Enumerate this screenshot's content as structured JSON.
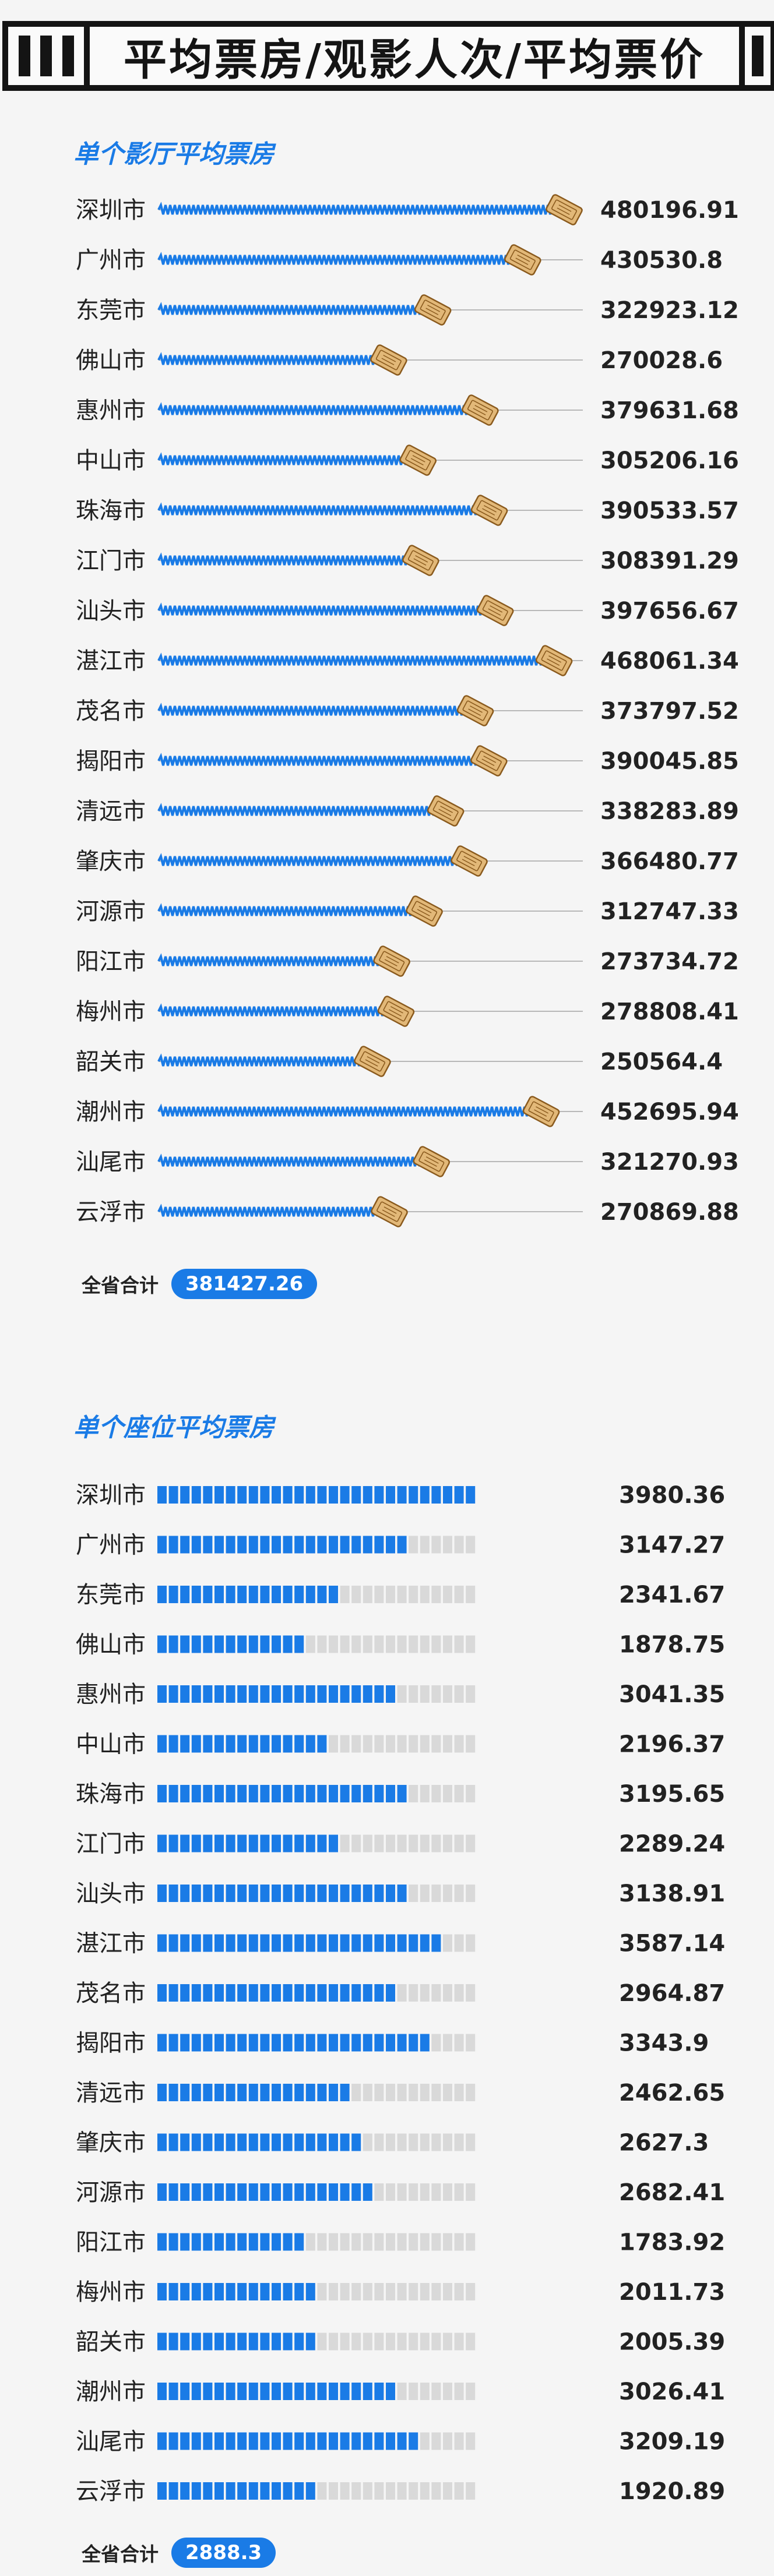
{
  "header": {
    "title": "平均票房/观影人次/平均票价"
  },
  "chart_data": [
    {
      "type": "bar",
      "title": "单个影厅平均票房",
      "categories": [
        "深圳市",
        "广州市",
        "东莞市",
        "佛山市",
        "惠州市",
        "中山市",
        "珠海市",
        "江门市",
        "汕头市",
        "湛江市",
        "茂名市",
        "揭阳市",
        "清远市",
        "肇庆市",
        "河源市",
        "阳江市",
        "梅州市",
        "韶关市",
        "潮州市",
        "汕尾市",
        "云浮市"
      ],
      "values": [
        480196.91,
        430530.8,
        322923.12,
        270028.6,
        379631.68,
        305206.16,
        390533.57,
        308391.29,
        397656.67,
        468061.34,
        373797.52,
        390045.85,
        338283.89,
        366480.77,
        312747.33,
        273734.72,
        278808.41,
        250564.4,
        452695.94,
        321270.93,
        270869.88
      ],
      "value_labels": [
        "480196.91",
        "430530.8",
        "322923.12",
        "270028.6",
        "379631.68",
        "305206.16",
        "390533.57",
        "308391.29",
        "397656.67",
        "468061.34",
        "373797.52",
        "390045.85",
        "338283.89",
        "366480.77",
        "312747.33",
        "273734.72",
        "278808.41",
        "250564.4",
        "452695.94",
        "321270.93",
        "270869.88"
      ],
      "total_label": "全省合计",
      "total_value": "381427.26",
      "bar_color": "#1a7be6"
    },
    {
      "type": "bar",
      "title": "单个座位平均票房",
      "categories": [
        "深圳市",
        "广州市",
        "东莞市",
        "佛山市",
        "惠州市",
        "中山市",
        "珠海市",
        "江门市",
        "汕头市",
        "湛江市",
        "茂名市",
        "揭阳市",
        "清远市",
        "肇庆市",
        "河源市",
        "阳江市",
        "梅州市",
        "韶关市",
        "潮州市",
        "汕尾市",
        "云浮市"
      ],
      "values": [
        3980.36,
        3147.27,
        2341.67,
        1878.75,
        3041.35,
        2196.37,
        3195.65,
        2289.24,
        3138.91,
        3587.14,
        2964.87,
        3343.9,
        2462.65,
        2627.3,
        2682.41,
        1783.92,
        2011.73,
        2005.39,
        3026.41,
        3209.19,
        1920.89
      ],
      "value_labels": [
        "3980.36",
        "3147.27",
        "2341.67",
        "1878.75",
        "3041.35",
        "2196.37",
        "3195.65",
        "2289.24",
        "3138.91",
        "3587.14",
        "2964.87",
        "3343.9",
        "2462.65",
        "2627.3",
        "2682.41",
        "1783.92",
        "2011.73",
        "2005.39",
        "3026.41",
        "3209.19",
        "1920.89"
      ],
      "total_label": "全省合计",
      "total_value": "2888.3",
      "bar_color": "#1a7be6",
      "track_color": "#d9d9d9"
    }
  ]
}
